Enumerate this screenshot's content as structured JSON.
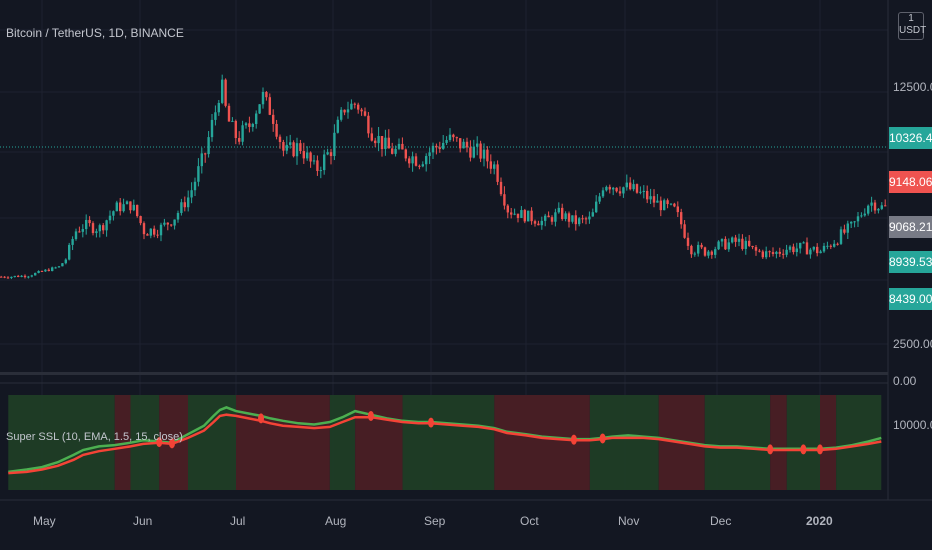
{
  "header": {
    "symbol": "Bitcoin / TetherUS, 1D, BINANCE",
    "currency": "USDT"
  },
  "indicator": {
    "title": "Super SSL (10, EMA, 1.5, 15, close)",
    "axis_label": "10000.00"
  },
  "price_axis": {
    "labels": [
      "12500.00",
      "2500.00",
      "0.00"
    ],
    "tags": [
      {
        "value": "10326.46",
        "color": "#26a69a"
      },
      {
        "value": "9148.06",
        "color": "#ef5350"
      },
      {
        "value": "9068.21",
        "color": "#787b86"
      },
      {
        "value": "8939.53",
        "color": "#26a69a"
      },
      {
        "value": "8439.00",
        "color": "#26a69a"
      }
    ]
  },
  "time_axis": {
    "labels": [
      "May",
      "Jun",
      "Jul",
      "Aug",
      "Sep",
      "Oct",
      "Nov",
      "Dec",
      "2020"
    ]
  },
  "colors": {
    "up": "#26a69a",
    "down": "#ef5350",
    "ssl_green": "#4caf50",
    "ssl_red": "#f44336",
    "bg_green": "#1f3d26",
    "bg_red": "#4a1f25"
  },
  "chart_data": [
    {
      "type": "line",
      "title": "Bitcoin / TetherUS, 1D, BINANCE",
      "x": [
        "Apr 20",
        "Apr 26",
        "May 1",
        "May 6",
        "May 11",
        "May 14",
        "May 19",
        "May 24",
        "May 29",
        "Jun 2",
        "Jun 7",
        "Jun 11",
        "Jun 16",
        "Jun 21",
        "Jun 24",
        "Jun 26",
        "Jun 28",
        "Jul 1",
        "Jul 5",
        "Jul 9",
        "Jul 12",
        "Jul 16",
        "Jul 21",
        "Jul 26",
        "Jul 31",
        "Aug 4",
        "Aug 8",
        "Aug 13",
        "Aug 18",
        "Aug 23",
        "Aug 28",
        "Sep 1",
        "Sep 6",
        "Sep 11",
        "Sep 16",
        "Sep 21",
        "Sep 25",
        "Oct 1",
        "Oct 6",
        "Oct 11",
        "Oct 16",
        "Oct 21",
        "Oct 25",
        "Oct 28",
        "Nov 2",
        "Nov 7",
        "Nov 12",
        "Nov 17",
        "Nov 22",
        "Nov 27",
        "Dec 2",
        "Dec 7",
        "Dec 12",
        "Dec 17",
        "Dec 22",
        "Dec 27",
        "Jan 1",
        "Jan 6",
        "Jan 11",
        "Jan 16",
        "Jan 20"
      ],
      "close": [
        5300,
        5400,
        5800,
        6200,
        7800,
        8000,
        7900,
        8600,
        8700,
        7800,
        7900,
        8200,
        9000,
        10200,
        11400,
        12500,
        11200,
        10600,
        11000,
        12100,
        11400,
        10200,
        10400,
        9700,
        10300,
        11600,
        11800,
        10800,
        10300,
        10200,
        10000,
        10300,
        10600,
        10400,
        10200,
        9800,
        8500,
        8300,
        8100,
        8400,
        8100,
        8200,
        9400,
        9300,
        9200,
        9000,
        8700,
        8500,
        7300,
        7200,
        7400,
        7500,
        7200,
        7100,
        7300,
        7300,
        7200,
        7600,
        8000,
        8800,
        8600
      ],
      "ylim": [
        0,
        14000
      ]
    },
    {
      "type": "line",
      "title": "Super SSL (10, EMA, 1.5, 15, close)",
      "series": [
        {
          "color": "#4caf50",
          "values": [
            6500,
            6700,
            6900,
            7300,
            7900,
            8300,
            8600,
            8700,
            8900,
            9100,
            9000,
            8900,
            9600,
            10300,
            11100,
            11600,
            11800,
            11500,
            11300,
            11100,
            10900,
            10700,
            10500,
            10400,
            10600,
            11000,
            11500,
            11200,
            10900,
            10700,
            10600,
            10600,
            10500,
            10400,
            10300,
            10100,
            9800,
            9600,
            9400,
            9300,
            9200,
            9200,
            9300,
            9400,
            9500,
            9400,
            9300,
            9100,
            8900,
            8700,
            8600,
            8600,
            8500,
            8400,
            8400,
            8400,
            8400,
            8500,
            8700,
            9000,
            9300
          ]
        },
        {
          "color": "#f44336",
          "values": [
            6400,
            6500,
            6700,
            7000,
            7500,
            7900,
            8200,
            8400,
            8600,
            8800,
            8900,
            8800,
            9300,
            9900,
            10600,
            11100,
            11200,
            11100,
            10900,
            10700,
            10500,
            10300,
            10200,
            10100,
            10200,
            10600,
            11000,
            11000,
            10800,
            10600,
            10500,
            10500,
            10400,
            10300,
            10200,
            10000,
            9700,
            9500,
            9300,
            9200,
            9100,
            9100,
            9200,
            9300,
            9300,
            9300,
            9200,
            9000,
            8800,
            8600,
            8500,
            8500,
            8400,
            8300,
            8300,
            8300,
            8300,
            8400,
            8600,
            8800,
            9000
          ]
        }
      ],
      "signals": [
        "Jun 7",
        "Jun 11",
        "Jul 9",
        "Aug 13",
        "Sep 1",
        "Oct 16",
        "Oct 25",
        "Dec 17",
        "Dec 27",
        "Jan 1"
      ],
      "regimes": [
        {
          "from": "Apr 20",
          "to": "May 24",
          "trend": "green"
        },
        {
          "from": "May 24",
          "to": "May 29",
          "trend": "red"
        },
        {
          "from": "May 29",
          "to": "Jun 7",
          "trend": "green"
        },
        {
          "from": "Jun 7",
          "to": "Jun 16",
          "trend": "red"
        },
        {
          "from": "Jun 16",
          "to": "Jul 1",
          "trend": "green"
        },
        {
          "from": "Jul 1",
          "to": "Jul 31",
          "trend": "red"
        },
        {
          "from": "Jul 31",
          "to": "Aug 8",
          "trend": "green"
        },
        {
          "from": "Aug 8",
          "to": "Aug 23",
          "trend": "red"
        },
        {
          "from": "Aug 23",
          "to": "Sep 21",
          "trend": "green"
        },
        {
          "from": "Sep 21",
          "to": "Oct 21",
          "trend": "red"
        },
        {
          "from": "Oct 21",
          "to": "Nov 12",
          "trend": "green"
        },
        {
          "from": "Nov 12",
          "to": "Nov 27",
          "trend": "red"
        },
        {
          "from": "Nov 27",
          "to": "Dec 17",
          "trend": "green"
        },
        {
          "from": "Dec 17",
          "to": "Dec 22",
          "trend": "red"
        },
        {
          "from": "Dec 22",
          "to": "Jan 1",
          "trend": "green"
        },
        {
          "from": "Jan 1",
          "to": "Jan 6",
          "trend": "red"
        },
        {
          "from": "Jan 6",
          "to": "Jan 20",
          "trend": "green"
        }
      ]
    }
  ]
}
